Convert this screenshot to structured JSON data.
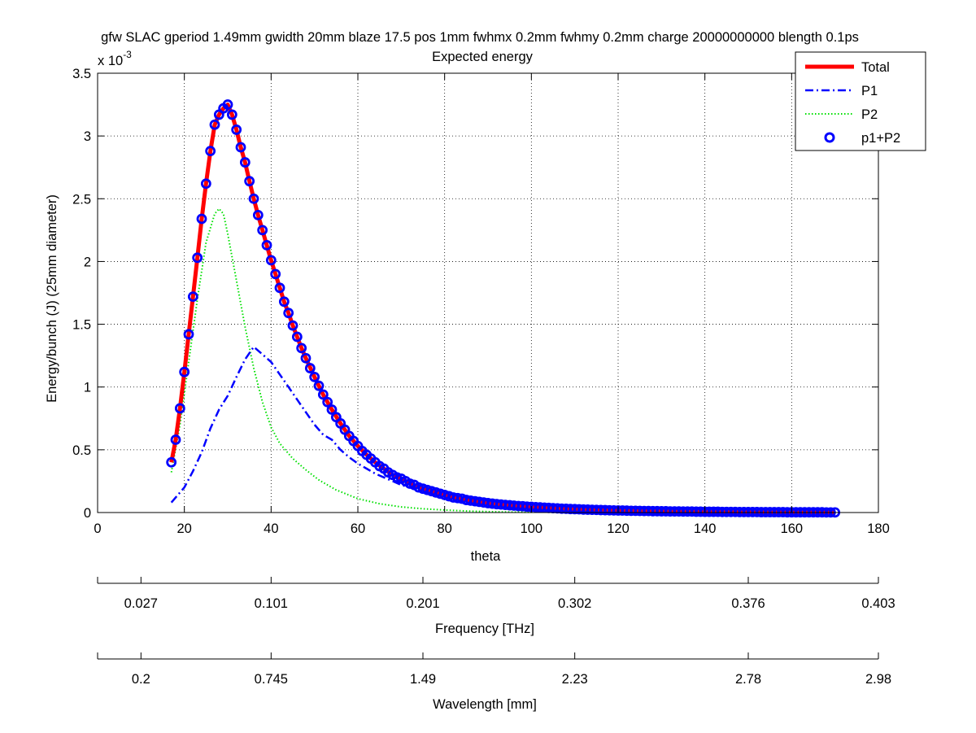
{
  "chart_data": {
    "type": "line",
    "title_line1": "gfw SLAC gperiod 1.49mm gwidth 20mm blaze 17.5 pos 1mm fwhmx 0.2mm fwhmy 0.2mm charge 20000000000 blength 0.1ps",
    "title_line2": "Expected energy",
    "xlabel": "theta",
    "ylabel": "Energy/bunch (J)  (25mm diameter)",
    "y_exponent_base": "x 10",
    "y_exponent_power": "-3",
    "xlim": [
      0,
      180
    ],
    "ylim": [
      0,
      3.5
    ],
    "x_ticks": [
      "0",
      "20",
      "40",
      "60",
      "80",
      "100",
      "120",
      "140",
      "160",
      "180"
    ],
    "y_ticks": [
      "0",
      "0.5",
      "1",
      "1.5",
      "2",
      "2.5",
      "3",
      "3.5"
    ],
    "grid": true,
    "legend_position": "top-right",
    "series": [
      {
        "name": "Total",
        "color": "#ff0000",
        "style": "solid-thick",
        "x": [
          17,
          18,
          19,
          20,
          21,
          22,
          23,
          24,
          25,
          26,
          27,
          28,
          29,
          30,
          31,
          32,
          33,
          34,
          35,
          36,
          37,
          38,
          39,
          40,
          41,
          42,
          43,
          44,
          45,
          46,
          47,
          48,
          50,
          52,
          54,
          56,
          58,
          60,
          62,
          64,
          66,
          68,
          70,
          72,
          75,
          80,
          85,
          90,
          95,
          100,
          105,
          110,
          115,
          120,
          125,
          130,
          135,
          140,
          145,
          150,
          155,
          160,
          165,
          170
        ],
        "values": [
          0.4,
          0.58,
          0.83,
          1.12,
          1.42,
          1.72,
          2.03,
          2.34,
          2.62,
          2.88,
          3.09,
          3.17,
          3.22,
          3.25,
          3.17,
          3.05,
          2.91,
          2.79,
          2.64,
          2.5,
          2.37,
          2.25,
          2.13,
          2.01,
          1.9,
          1.79,
          1.68,
          1.59,
          1.49,
          1.4,
          1.31,
          1.23,
          1.08,
          0.94,
          0.82,
          0.71,
          0.61,
          0.53,
          0.46,
          0.4,
          0.35,
          0.3,
          0.27,
          0.23,
          0.19,
          0.14,
          0.1,
          0.075,
          0.058,
          0.045,
          0.035,
          0.027,
          0.021,
          0.016,
          0.013,
          0.01,
          0.008,
          0.006,
          0.005,
          0.004,
          0.003,
          0.002,
          0.002,
          0.001
        ]
      },
      {
        "name": "P1",
        "color": "#0000ff",
        "style": "dash-dot",
        "x": [
          17,
          20,
          22,
          24,
          26,
          28,
          30,
          32,
          34,
          36,
          38,
          40,
          42,
          44,
          46,
          48,
          50,
          52,
          54,
          56,
          58,
          60,
          62,
          64,
          66,
          68,
          70,
          72,
          75,
          80,
          85,
          90,
          100,
          110,
          120,
          130,
          140,
          150,
          160,
          170
        ],
        "values": [
          0.08,
          0.2,
          0.33,
          0.48,
          0.67,
          0.82,
          0.93,
          1.08,
          1.22,
          1.32,
          1.26,
          1.2,
          1.1,
          1.0,
          0.9,
          0.8,
          0.7,
          0.62,
          0.58,
          0.5,
          0.44,
          0.39,
          0.35,
          0.31,
          0.28,
          0.25,
          0.22,
          0.2,
          0.17,
          0.13,
          0.09,
          0.07,
          0.04,
          0.025,
          0.015,
          0.009,
          0.006,
          0.004,
          0.002,
          0.001
        ]
      },
      {
        "name": "P2",
        "color": "#00e000",
        "style": "dotted",
        "x": [
          17,
          19,
          21,
          23,
          25,
          27,
          28,
          29,
          30,
          32,
          34,
          36,
          38,
          40,
          42,
          45,
          48,
          51,
          55,
          60,
          65,
          70,
          75,
          80,
          85,
          90,
          95,
          100
        ],
        "values": [
          0.32,
          0.7,
          1.2,
          1.7,
          2.15,
          2.38,
          2.42,
          2.38,
          2.22,
          1.85,
          1.48,
          1.15,
          0.88,
          0.68,
          0.55,
          0.43,
          0.34,
          0.26,
          0.18,
          0.11,
          0.07,
          0.045,
          0.03,
          0.02,
          0.012,
          0.007,
          0.004,
          0.002
        ]
      },
      {
        "name": "p1+P2",
        "color": "#0000ff",
        "style": "circle-markers",
        "x": [
          17,
          18,
          19,
          20,
          21,
          22,
          23,
          24,
          25,
          26,
          27,
          28,
          29,
          30,
          31,
          32,
          33,
          34,
          35,
          36,
          37,
          38,
          39,
          40,
          41,
          42,
          43,
          44,
          45,
          46,
          47,
          48,
          49,
          50,
          51,
          52,
          53,
          54,
          55,
          56,
          57,
          58,
          59,
          60,
          61,
          62,
          63,
          64,
          65,
          66,
          67,
          68,
          69,
          70,
          71,
          72,
          73,
          74,
          75,
          76,
          77,
          78,
          79,
          80,
          81,
          82,
          83,
          84,
          85,
          86,
          87,
          88,
          89,
          90,
          91,
          92,
          93,
          94,
          95,
          96,
          97,
          98,
          99,
          100,
          101,
          102,
          103,
          104,
          105,
          106,
          107,
          108,
          109,
          110,
          111,
          112,
          113,
          114,
          115,
          116,
          117,
          118,
          119,
          120,
          121,
          122,
          123,
          124,
          125,
          126,
          127,
          128,
          129,
          130,
          131,
          132,
          133,
          134,
          135,
          136,
          137,
          138,
          139,
          140,
          141,
          142,
          143,
          144,
          145,
          146,
          147,
          148,
          149,
          150,
          151,
          152,
          153,
          154,
          155,
          156,
          157,
          158,
          159,
          160,
          161,
          162,
          163,
          164,
          165,
          166,
          167,
          168,
          169,
          170
        ],
        "values": [
          0.4,
          0.58,
          0.83,
          1.12,
          1.42,
          1.72,
          2.03,
          2.34,
          2.62,
          2.88,
          3.09,
          3.17,
          3.22,
          3.25,
          3.17,
          3.05,
          2.91,
          2.79,
          2.64,
          2.5,
          2.37,
          2.25,
          2.13,
          2.01,
          1.9,
          1.79,
          1.68,
          1.59,
          1.49,
          1.4,
          1.31,
          1.23,
          1.15,
          1.08,
          1.01,
          0.94,
          0.88,
          0.82,
          0.76,
          0.71,
          0.66,
          0.61,
          0.57,
          0.53,
          0.49,
          0.46,
          0.43,
          0.4,
          0.37,
          0.35,
          0.32,
          0.3,
          0.28,
          0.27,
          0.25,
          0.23,
          0.22,
          0.2,
          0.19,
          0.18,
          0.17,
          0.16,
          0.15,
          0.14,
          0.13,
          0.12,
          0.115,
          0.11,
          0.1,
          0.095,
          0.09,
          0.085,
          0.08,
          0.075,
          0.071,
          0.067,
          0.064,
          0.061,
          0.058,
          0.055,
          0.052,
          0.05,
          0.047,
          0.045,
          0.043,
          0.041,
          0.039,
          0.037,
          0.035,
          0.033,
          0.031,
          0.03,
          0.028,
          0.027,
          0.026,
          0.024,
          0.023,
          0.022,
          0.021,
          0.02,
          0.019,
          0.018,
          0.017,
          0.016,
          0.016,
          0.015,
          0.014,
          0.014,
          0.013,
          0.012,
          0.012,
          0.011,
          0.011,
          0.01,
          0.01,
          0.009,
          0.009,
          0.009,
          0.008,
          0.008,
          0.008,
          0.007,
          0.007,
          0.006,
          0.006,
          0.006,
          0.006,
          0.005,
          0.005,
          0.005,
          0.005,
          0.004,
          0.004,
          0.004,
          0.004,
          0.004,
          0.003,
          0.003,
          0.003,
          0.003,
          0.003,
          0.003,
          0.002,
          0.002,
          0.002,
          0.002,
          0.002,
          0.002,
          0.002,
          0.002,
          0.002,
          0.001,
          0.001,
          0.001
        ]
      }
    ],
    "secondary_axes": [
      {
        "label": "Frequency [THz]",
        "tick_labels": [
          "0.027",
          "0.101",
          "0.201",
          "0.302",
          "0.376",
          "0.403"
        ],
        "tick_theta": [
          10,
          40,
          75,
          110,
          150,
          180
        ]
      },
      {
        "label": "Wavelength [mm]",
        "tick_labels": [
          "0.2",
          "0.745",
          "1.49",
          "2.23",
          "2.78",
          "2.98"
        ],
        "tick_theta": [
          10,
          40,
          75,
          110,
          150,
          180
        ]
      }
    ]
  }
}
